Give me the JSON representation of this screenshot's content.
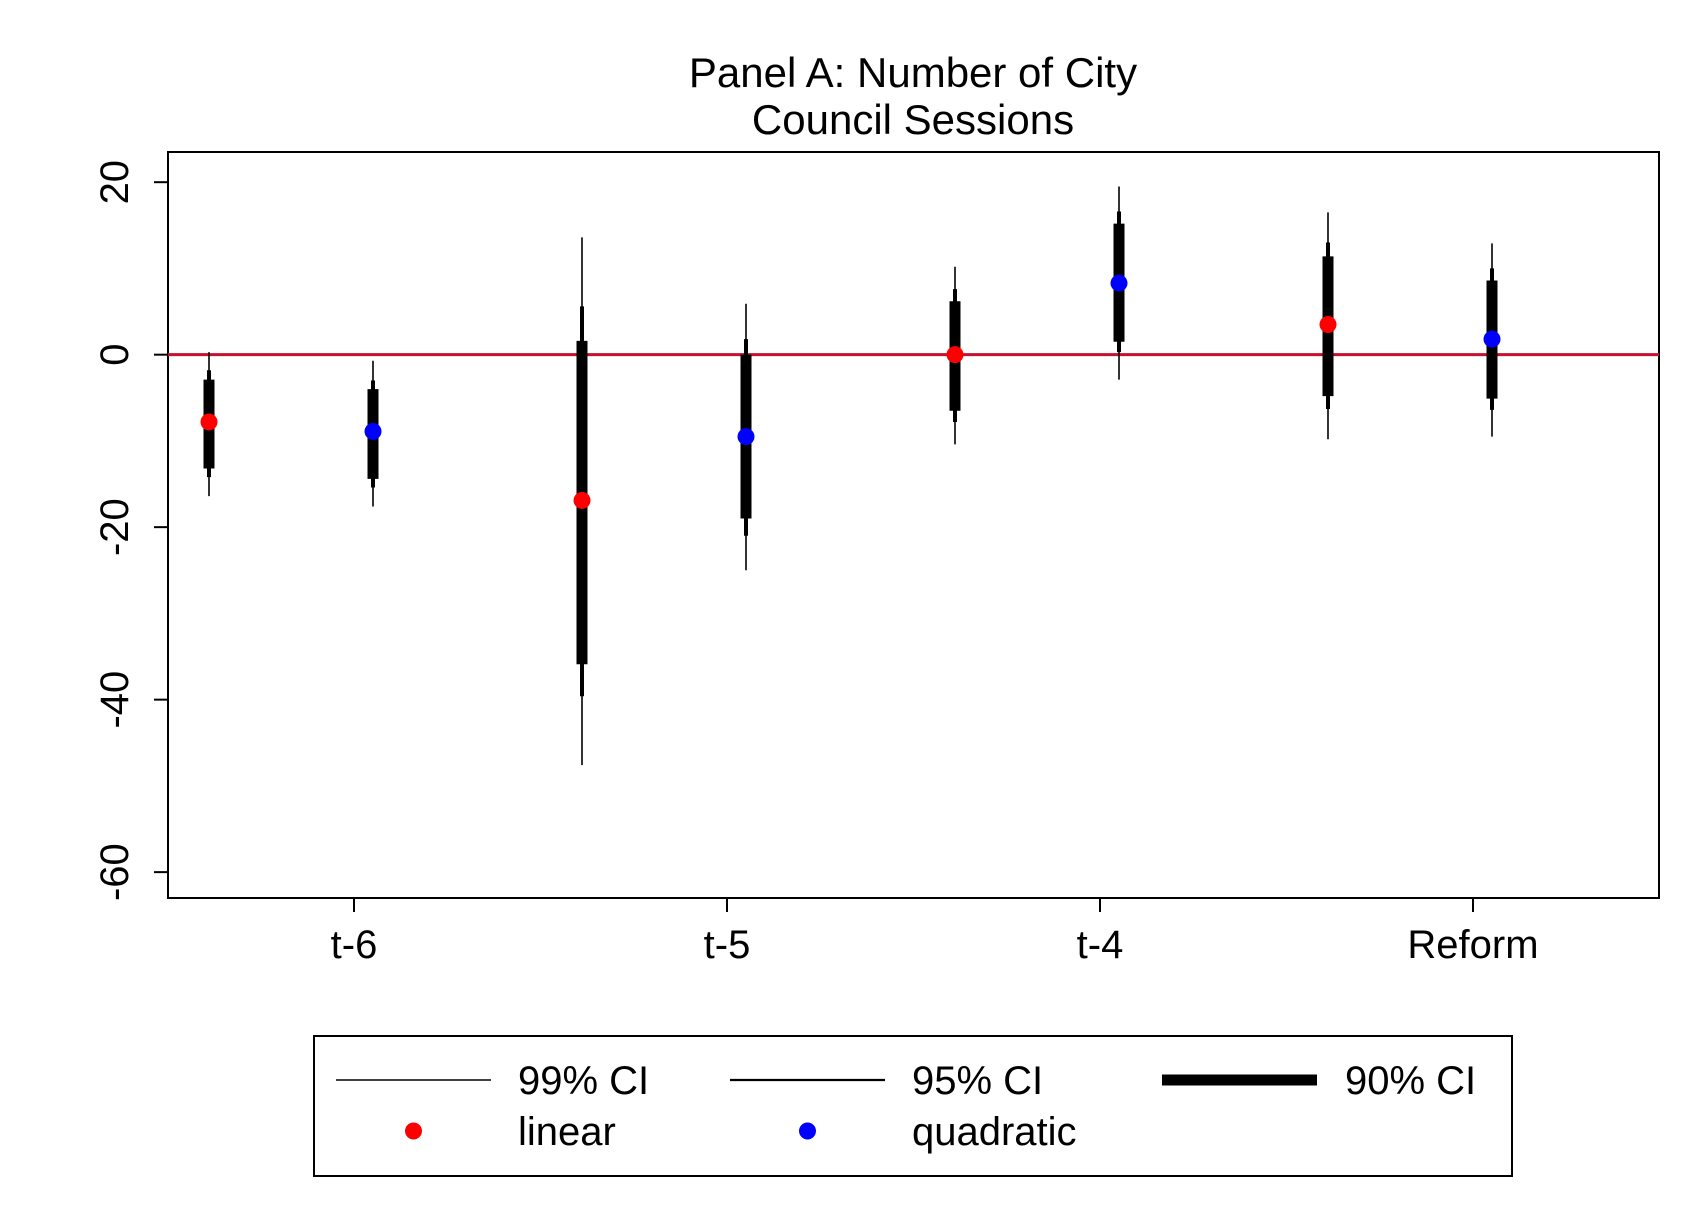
{
  "chart_data": {
    "type": "scatter",
    "title": [
      "Panel A: Number of City",
      "Council Sessions"
    ],
    "xlabel": "",
    "ylabel": "",
    "categories": [
      "t-6",
      "t-5",
      "t-4",
      "Reform"
    ],
    "ylim": [
      -63,
      23.5
    ],
    "yticks": [
      20,
      0,
      -20,
      -40,
      -60
    ],
    "ytick_labels": [
      "20",
      "0",
      "-20",
      "-40",
      "-60"
    ],
    "reference_line": {
      "y": 0,
      "color": "#c8102e"
    },
    "grid": false,
    "legend_position": "bottom",
    "series": [
      {
        "name": "linear",
        "color": "#ff0000",
        "points": [
          {
            "category": "t-6",
            "estimate": -7.8,
            "ci90": [
              -13.2,
              -2.9
            ],
            "ci95": [
              -14.2,
              -1.8
            ],
            "ci99": [
              -16.4,
              0.3
            ]
          },
          {
            "category": "t-5",
            "estimate": -16.9,
            "ci90": [
              -35.9,
              1.6
            ],
            "ci95": [
              -39.6,
              5.6
            ],
            "ci99": [
              -47.6,
              13.6
            ]
          },
          {
            "category": "t-4",
            "estimate": 0.0,
            "ci90": [
              -6.5,
              6.2
            ],
            "ci95": [
              -7.8,
              7.6
            ],
            "ci99": [
              -10.4,
              10.2
            ]
          },
          {
            "category": "Reform",
            "estimate": 3.5,
            "ci90": [
              -4.8,
              11.4
            ],
            "ci95": [
              -6.3,
              13.0
            ],
            "ci99": [
              -9.8,
              16.5
            ]
          }
        ]
      },
      {
        "name": "quadratic",
        "color": "#0000ff",
        "points": [
          {
            "category": "t-6",
            "estimate": -8.9,
            "ci90": [
              -14.4,
              -4.0
            ],
            "ci95": [
              -15.4,
              -3.0
            ],
            "ci99": [
              -17.6,
              -0.7
            ]
          },
          {
            "category": "t-5",
            "estimate": -9.5,
            "ci90": [
              -19.0,
              0.0
            ],
            "ci95": [
              -21.0,
              1.8
            ],
            "ci99": [
              -25.0,
              5.9
            ]
          },
          {
            "category": "t-4",
            "estimate": 8.3,
            "ci90": [
              1.5,
              15.2
            ],
            "ci95": [
              0.3,
              16.6
            ],
            "ci99": [
              -2.9,
              19.5
            ]
          },
          {
            "category": "Reform",
            "estimate": 1.8,
            "ci90": [
              -5.1,
              8.6
            ],
            "ci95": [
              -6.4,
              10.0
            ],
            "ci99": [
              -9.5,
              12.9
            ]
          }
        ]
      }
    ],
    "legend": [
      {
        "label": "99% CI",
        "kind": "line-thin"
      },
      {
        "label": "95% CI",
        "kind": "line-medium"
      },
      {
        "label": "90% CI",
        "kind": "line-thick"
      },
      {
        "label": "linear",
        "kind": "dot",
        "color": "#ff0000"
      },
      {
        "label": "quadratic",
        "kind": "dot",
        "color": "#0000ff"
      }
    ]
  }
}
